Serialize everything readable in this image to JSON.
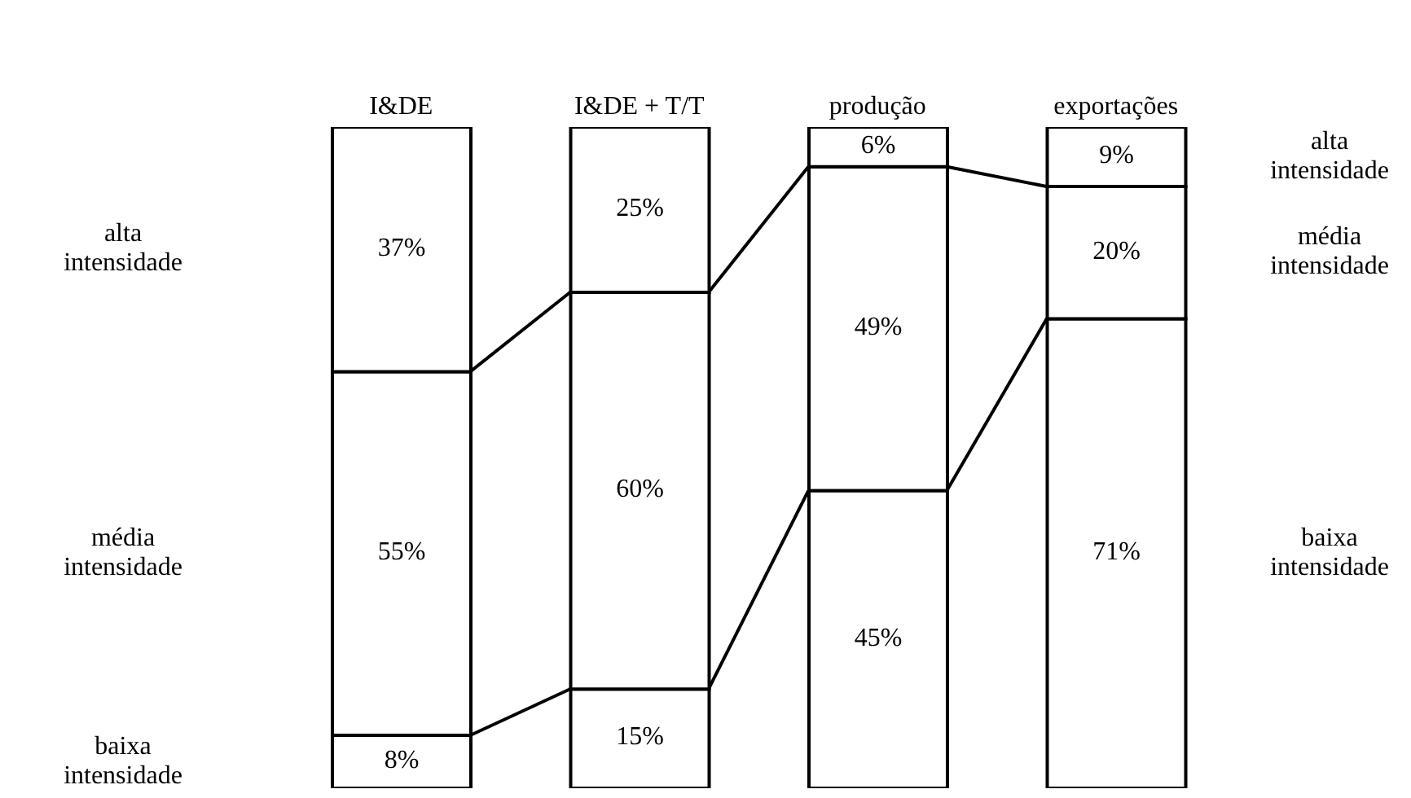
{
  "chart_data": {
    "type": "bar",
    "stacked": true,
    "categories": [
      "I&DE",
      "I&DE + T/T",
      "produção",
      "exportações"
    ],
    "series": [
      {
        "name": "baixa intensidade",
        "color": "#ffffff",
        "values": [
          8,
          15,
          45,
          71
        ],
        "value_labels": [
          "8%",
          "15%",
          "45%",
          "71%"
        ]
      },
      {
        "name": "média intensidade",
        "color": "#ffffff",
        "values": [
          55,
          60,
          49,
          20
        ],
        "value_labels": [
          "55%",
          "60%",
          "49%",
          "20%"
        ]
      },
      {
        "name": "alta intensidade",
        "color": "#ffffff",
        "values": [
          37,
          25,
          6,
          9
        ],
        "value_labels": [
          "37%",
          "25%",
          "6%",
          "9%"
        ]
      }
    ]
  }
}
